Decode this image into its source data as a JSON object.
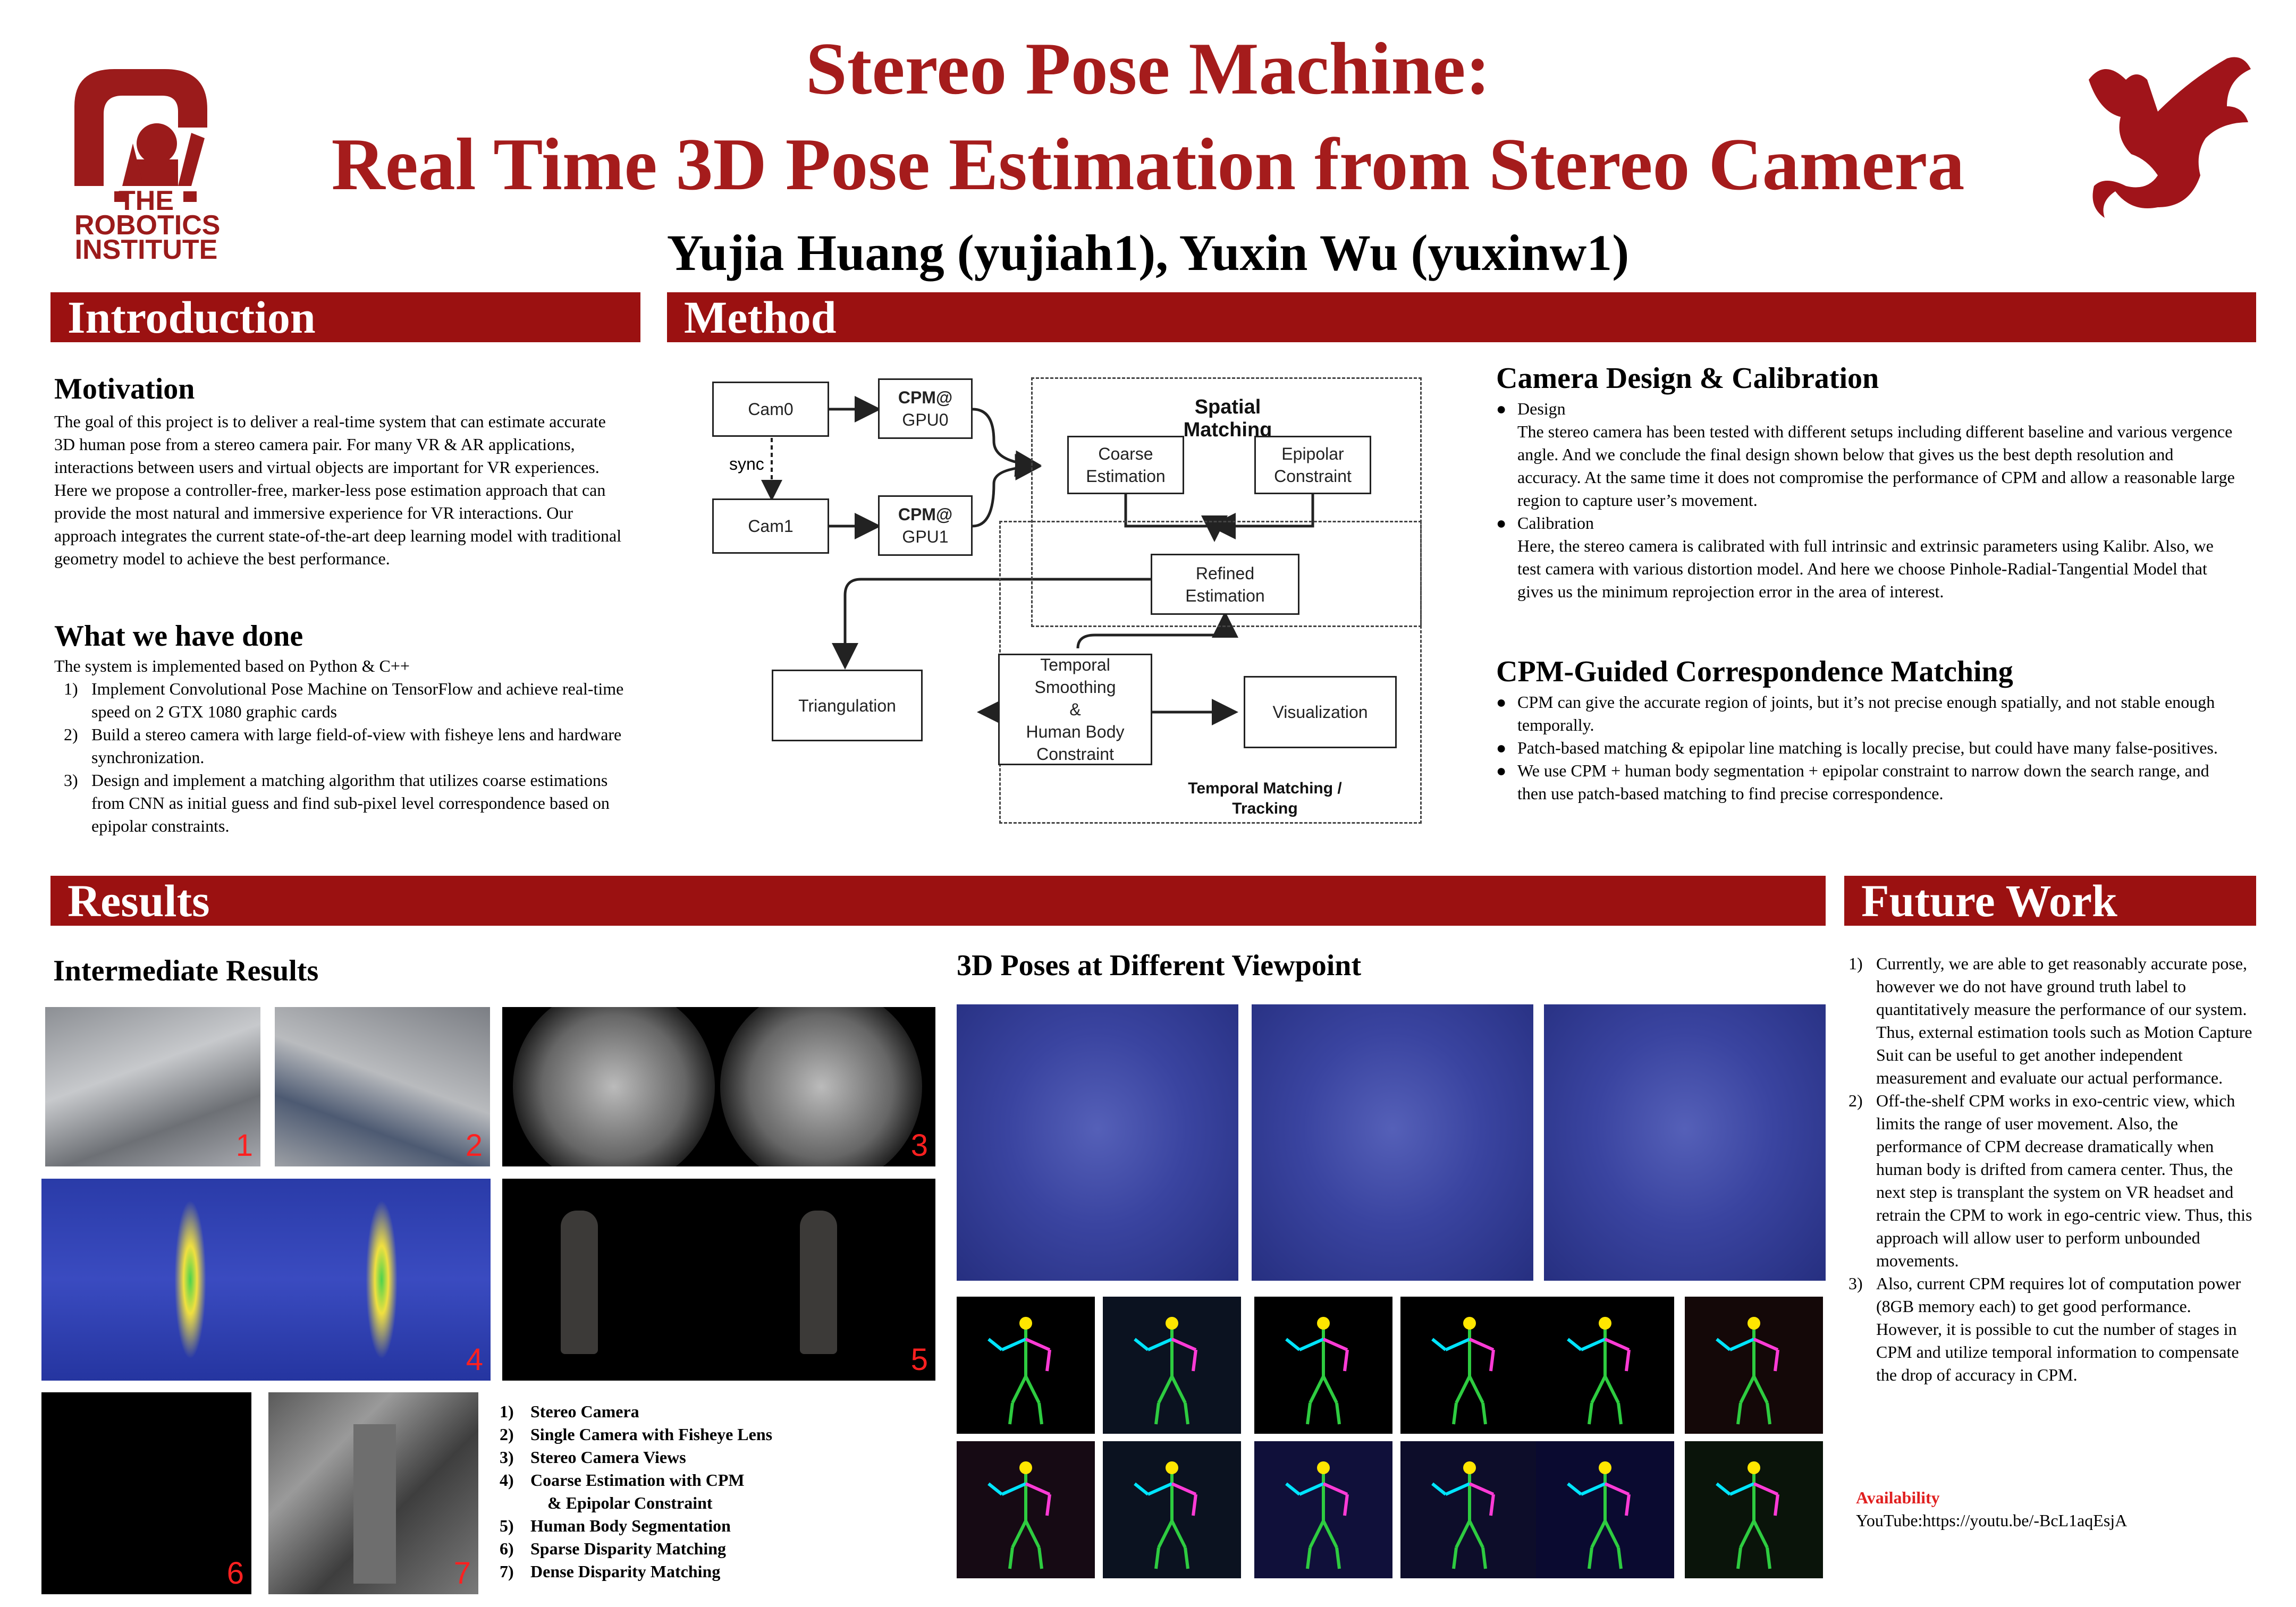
{
  "header": {
    "title_line1": "Stereo Pose Machine:",
    "title_line2": "Real Time 3D Pose Estimation from Stereo Camera",
    "authors": "Yujia Huang (yujiah1), Yuxin Wu (yuxinw1)",
    "logo_left_lines": [
      "THE",
      "ROBOTICS",
      "INSTITUTE"
    ]
  },
  "colors": {
    "accent": "#9b1111",
    "title": "#a51c1c",
    "number_red": "#ff2020"
  },
  "introduction": {
    "heading": "Introduction",
    "motivation_title": "Motivation",
    "motivation_text": "The goal of this project is to deliver a real-time  system that can estimate accurate 3D human pose from a stereo camera pair. For many VR & AR applications, interactions  between users and virtual objects are important for VR experiences. Here we propose a controller-free, marker-less pose estimation approach that can provide the most natural and immersive experience for VR interactions. Our approach integrates the current state-of-the-art deep learning model with traditional geometry model to achieve the best performance.",
    "done_title": "What we have done",
    "done_intro": "The system is implemented based on Python & C++",
    "done_items": [
      {
        "num": "1)",
        "text": "Implement Convolutional Pose Machine on TensorFlow and achieve real-time speed on 2 GTX 1080 graphic cards"
      },
      {
        "num": "2)",
        "text": "Build a stereo camera with large field-of-view with fisheye lens and hardware synchronization."
      },
      {
        "num": "3)",
        "text": "Design and implement a matching algorithm that utilizes coarse estimations from CNN as initial guess and find sub-pixel level correspondence based on epipolar constraints."
      }
    ]
  },
  "method": {
    "heading": "Method",
    "diagram": {
      "cam0": "Cam0",
      "cam1": "Cam1",
      "sync": "sync",
      "cpm0_line1": "CPM@",
      "cpm0_line2": "GPU0",
      "cpm1_line1": "CPM@",
      "cpm1_line2": "GPU1",
      "spatial_matching": "Spatial Matching",
      "coarse_line1": "Coarse",
      "coarse_line2": "Estimation",
      "epipolar_line1": "Epipolar",
      "epipolar_line2": "Constraint",
      "refined_line1": "Refined",
      "refined_line2": "Estimation",
      "triangulation": "Triangulation",
      "temporal_lines": [
        "Temporal",
        "Smoothing",
        "&",
        "Human Body",
        "Constraint"
      ],
      "visualization": "Visualization",
      "temporal_matching_line1": "Temporal Matching /",
      "temporal_matching_line2": "Tracking"
    },
    "camera_title": "Camera Design & Calibration",
    "camera_items": [
      {
        "label": "Design",
        "text": "The stereo camera has been tested with different setups including different baseline and various vergence angle. And we conclude the final design shown below that gives us the best depth resolution and accuracy. At the same time it does not compromise the performance of CPM and allow a reasonable large region to capture user’s movement."
      },
      {
        "label": "Calibration",
        "text": "Here, the stereo camera is calibrated with full intrinsic and extrinsic parameters using Kalibr. Also, we test camera with various distortion model. And here we choose Pinhole-Radial-Tangential Model that gives us the minimum reprojection error in the area of interest."
      }
    ],
    "cpm_title": "CPM-Guided Correspondence Matching",
    "cpm_items": [
      "CPM can give the accurate region of joints, but it’s not precise enough spatially, and not stable enough temporally.",
      "Patch-based matching & epipolar line matching is locally precise, but could have many false-positives.",
      "We use CPM + human body segmentation + epipolar constraint to narrow down the search range, and then use patch-based matching to find precise correspondence."
    ]
  },
  "results": {
    "heading": "Results",
    "intermediate_title": "Intermediate Results",
    "viewpoint_title": "3D Poses at Different Viewpoint",
    "photo_numbers": [
      "1",
      "2",
      "3",
      "4",
      "5",
      "6",
      "7"
    ],
    "captions": [
      {
        "num": "1)",
        "text": "Stereo Camera"
      },
      {
        "num": "2)",
        "text": "Single Camera with Fisheye Lens"
      },
      {
        "num": "3)",
        "text": "Stereo Camera Views"
      },
      {
        "num": "4)",
        "text": "Coarse Estimation with CPM"
      },
      {
        "num": "",
        "text": "& Epipolar Constraint"
      },
      {
        "num": "5)",
        "text": "Human Body Segmentation"
      },
      {
        "num": "6)",
        "text": "Sparse Disparity Matching"
      },
      {
        "num": "7)",
        "text": "Dense Disparity Matching"
      }
    ]
  },
  "future": {
    "heading": "Future Work",
    "items": [
      {
        "num": "1)",
        "text": "Currently, we are able to get reasonably accurate pose, however we do not have ground truth label to quantitatively measure the performance of our system. Thus, external estimation tools such as Motion Capture Suit can be useful to get another independent measurement and evaluate our actual performance."
      },
      {
        "num": "2)",
        "text": "Off-the-shelf CPM works in exo-centric view, which limits the range of user movement. Also, the performance of CPM decrease dramatically when human body is drifted from camera center. Thus, the next step is transplant the system on VR headset and retrain the CPM to work in ego-centric view. Thus, this approach will allow user to perform unbounded movements."
      },
      {
        "num": "3)",
        "text": "Also, current CPM requires lot of computation power (8GB memory each) to get good performance. However, it is possible to cut the number of stages in CPM and utilize temporal information to compensate the drop of accuracy in CPM."
      }
    ],
    "availability_label": "Availability",
    "availability_text": "YouTube:https://youtu.be/-BcL1aqEsjA"
  }
}
